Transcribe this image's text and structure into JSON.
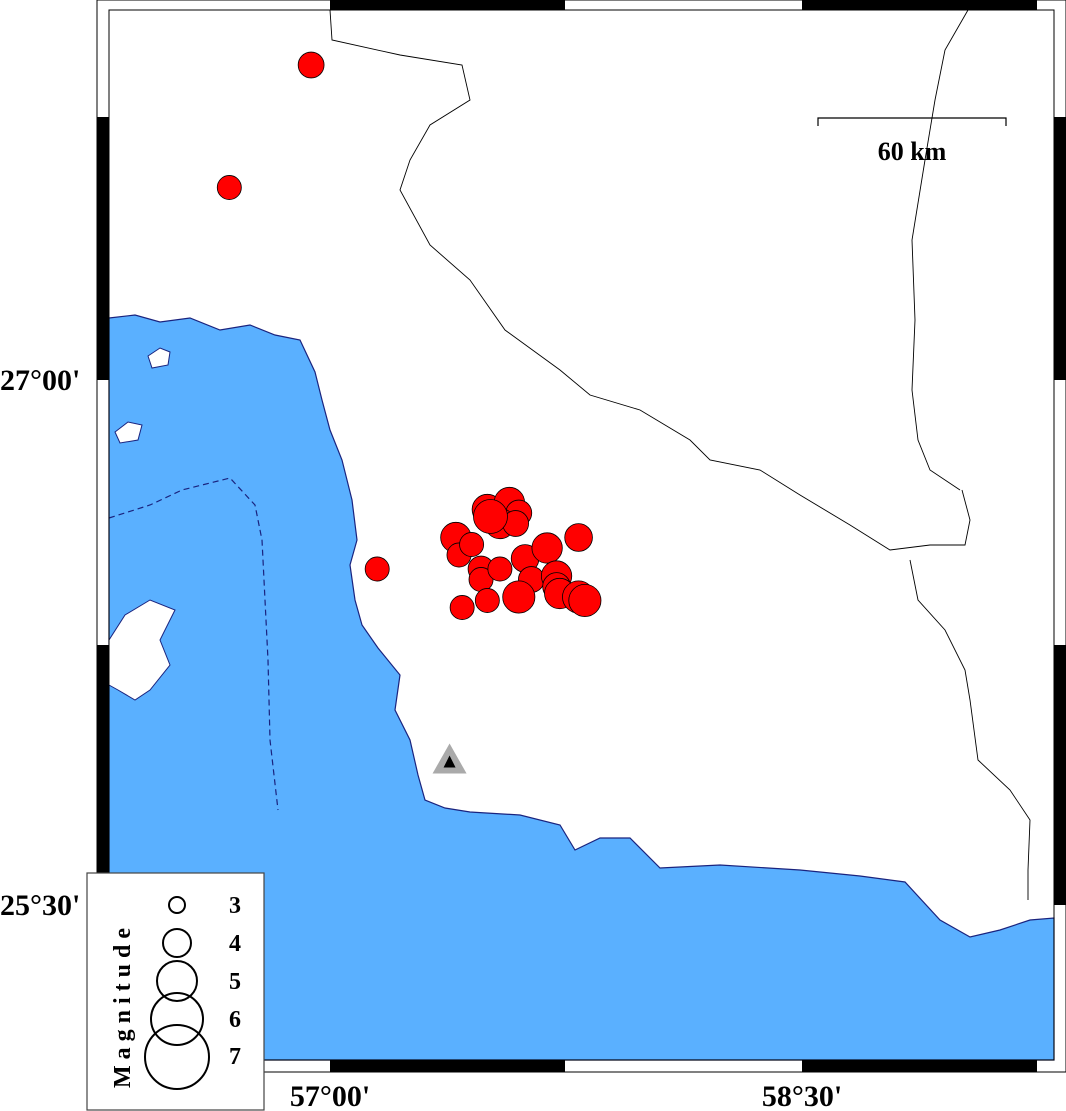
{
  "map": {
    "sea_color": "#5ab0ff",
    "land_color": "#ffffff",
    "event_color": "#ff0000",
    "lon_labels": [
      {
        "lon": 57.0,
        "text": "57°00'"
      },
      {
        "lon": 58.5,
        "text": "58°30'"
      }
    ],
    "lat_labels": [
      {
        "lat": 27.0,
        "text": "27°00'"
      },
      {
        "lat": 25.5,
        "text": "25°30'"
      }
    ],
    "scale_bar": {
      "label": "60 km"
    },
    "station": {
      "lon": 57.38,
      "lat": 25.91,
      "symbol": "triangle"
    },
    "legend": {
      "title": "Magnitude",
      "entries": [
        {
          "mag": 3,
          "label": "3"
        },
        {
          "mag": 4,
          "label": "4"
        },
        {
          "mag": 5,
          "label": "5"
        },
        {
          "mag": 6,
          "label": "6"
        },
        {
          "mag": 7,
          "label": "7"
        }
      ]
    },
    "events": [
      {
        "lon": 56.94,
        "lat": 27.9,
        "mag": 4.1
      },
      {
        "lon": 56.68,
        "lat": 27.55,
        "mag": 3.9
      },
      {
        "lon": 57.15,
        "lat": 26.46,
        "mag": 3.9
      },
      {
        "lon": 57.79,
        "lat": 26.55,
        "mag": 4.3
      },
      {
        "lon": 57.4,
        "lat": 26.55,
        "mag": 4.6
      },
      {
        "lon": 57.41,
        "lat": 26.5,
        "mag": 3.9
      },
      {
        "lon": 57.5,
        "lat": 26.63,
        "mag": 4.6
      },
      {
        "lon": 57.57,
        "lat": 26.65,
        "mag": 4.6
      },
      {
        "lon": 57.6,
        "lat": 26.62,
        "mag": 4.1
      },
      {
        "lon": 57.54,
        "lat": 26.59,
        "mag": 4.6
      },
      {
        "lon": 57.59,
        "lat": 26.59,
        "mag": 4.1
      },
      {
        "lon": 57.48,
        "lat": 26.46,
        "mag": 4.1
      },
      {
        "lon": 57.48,
        "lat": 26.43,
        "mag": 3.9
      },
      {
        "lon": 57.62,
        "lat": 26.49,
        "mag": 4.3
      },
      {
        "lon": 57.69,
        "lat": 26.52,
        "mag": 4.6
      },
      {
        "lon": 57.64,
        "lat": 26.43,
        "mag": 4.1
      },
      {
        "lon": 57.72,
        "lat": 26.44,
        "mag": 4.6
      },
      {
        "lon": 57.72,
        "lat": 26.41,
        "mag": 4.3
      },
      {
        "lon": 57.42,
        "lat": 26.35,
        "mag": 3.9
      },
      {
        "lon": 57.5,
        "lat": 26.37,
        "mag": 3.9
      },
      {
        "lon": 57.45,
        "lat": 26.53,
        "mag": 3.9
      },
      {
        "lon": 57.54,
        "lat": 26.46,
        "mag": 3.9
      },
      {
        "lon": 57.6,
        "lat": 26.38,
        "mag": 4.8
      },
      {
        "lon": 57.73,
        "lat": 26.39,
        "mag": 4.6
      },
      {
        "lon": 57.79,
        "lat": 26.38,
        "mag": 4.8
      },
      {
        "lon": 57.81,
        "lat": 26.37,
        "mag": 4.8
      },
      {
        "lon": 57.51,
        "lat": 26.61,
        "mag": 5.0
      }
    ]
  }
}
